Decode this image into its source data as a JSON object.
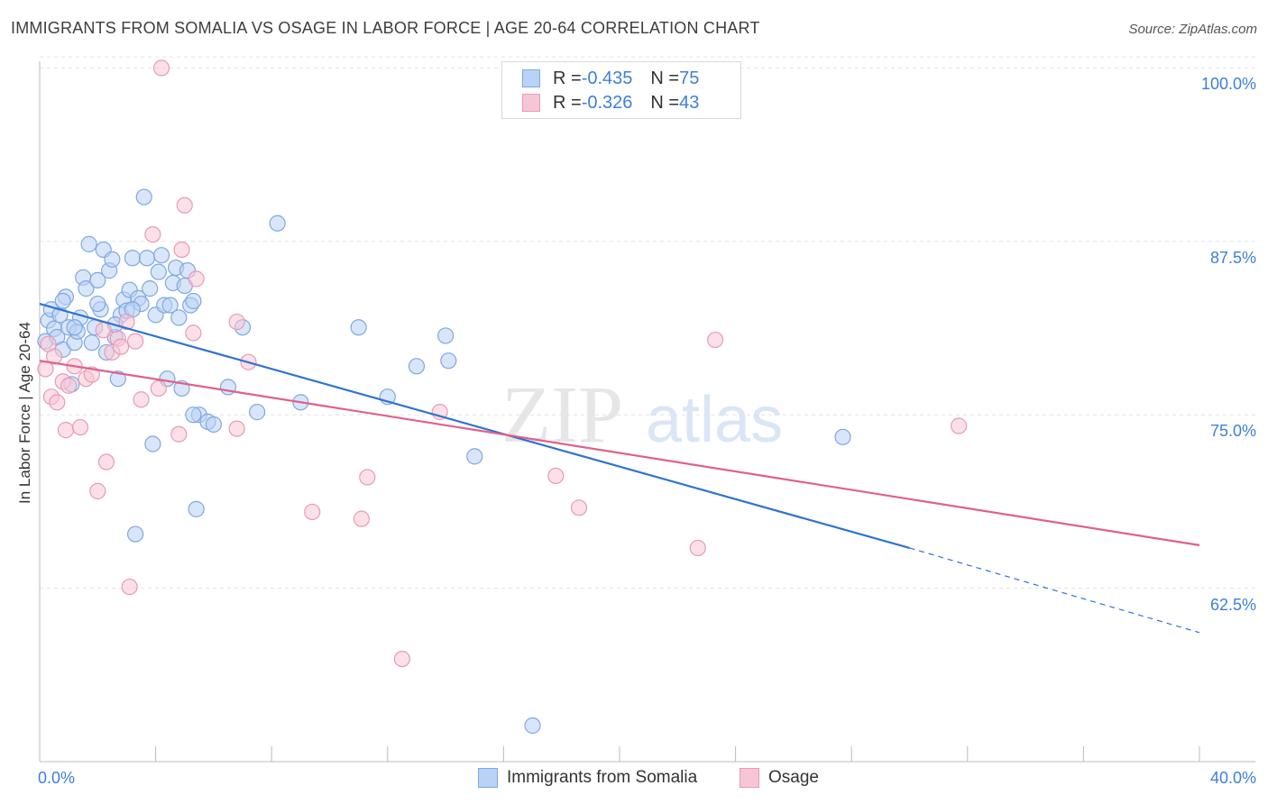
{
  "header": {
    "title": "IMMIGRANTS FROM SOMALIA VS OSAGE IN LABOR FORCE | AGE 20-64 CORRELATION CHART",
    "source": "Source: ZipAtlas.com"
  },
  "legend": {
    "r_label": "R = ",
    "n_label": "N = ",
    "rows": [
      {
        "r": "-0.435",
        "n": "75",
        "color": "#b9d2f6"
      },
      {
        "r": "-0.326",
        "n": "43",
        "color": "#f7c6d6"
      }
    ]
  },
  "watermark": {
    "zip": "ZIP",
    "atlas": "atlas"
  },
  "chart_data": {
    "type": "scatter",
    "title": "IMMIGRANTS FROM SOMALIA VS OSAGE IN LABOR FORCE | AGE 20-64 CORRELATION CHART",
    "xlabel": "",
    "ylabel": "In Labor Force | Age 20-64",
    "xlim": [
      0,
      40
    ],
    "ylim": [
      50,
      101
    ],
    "x_tick_labels": [
      "0.0%",
      "40.0%"
    ],
    "y_ticks": [
      62.5,
      75.0,
      87.5,
      100.0
    ],
    "y_tick_labels": [
      "62.5%",
      "75.0%",
      "87.5%",
      "100.0%"
    ],
    "grid": true,
    "legend_position": "top-center",
    "series": [
      {
        "name": "Immigrants from Somalia",
        "color": "#7fa7e0",
        "fill": "#b9d2f6",
        "line_color": "#2e73d0",
        "trend": {
          "x0": 0,
          "y0": 83.0,
          "x1": 30.0,
          "y1": 65.4,
          "dash_to_x": 40,
          "dash_to_y": 59.3
        },
        "points": [
          [
            0.2,
            80.3
          ],
          [
            0.3,
            81.8
          ],
          [
            0.4,
            82.6
          ],
          [
            0.5,
            81.2
          ],
          [
            0.6,
            80.6
          ],
          [
            0.7,
            82.2
          ],
          [
            0.8,
            79.7
          ],
          [
            0.9,
            83.5
          ],
          [
            1.0,
            81.3
          ],
          [
            1.1,
            77.2
          ],
          [
            1.2,
            80.2
          ],
          [
            1.3,
            81.0
          ],
          [
            1.4,
            82.0
          ],
          [
            1.5,
            84.9
          ],
          [
            1.6,
            84.1
          ],
          [
            1.7,
            87.3
          ],
          [
            1.8,
            80.2
          ],
          [
            1.9,
            81.3
          ],
          [
            2.0,
            84.7
          ],
          [
            2.1,
            82.6
          ],
          [
            2.2,
            86.9
          ],
          [
            2.3,
            79.5
          ],
          [
            2.4,
            85.4
          ],
          [
            2.5,
            86.2
          ],
          [
            2.6,
            80.6
          ],
          [
            2.7,
            77.6
          ],
          [
            2.8,
            82.2
          ],
          [
            2.9,
            83.3
          ],
          [
            3.0,
            82.5
          ],
          [
            3.1,
            84.0
          ],
          [
            3.2,
            86.3
          ],
          [
            3.3,
            66.4
          ],
          [
            3.4,
            83.4
          ],
          [
            3.5,
            83.0
          ],
          [
            3.6,
            90.7
          ],
          [
            3.7,
            86.3
          ],
          [
            3.8,
            84.1
          ],
          [
            3.9,
            72.9
          ],
          [
            4.0,
            82.2
          ],
          [
            4.1,
            85.3
          ],
          [
            4.2,
            86.5
          ],
          [
            4.3,
            82.9
          ],
          [
            4.4,
            77.6
          ],
          [
            4.5,
            82.9
          ],
          [
            4.6,
            84.5
          ],
          [
            4.7,
            85.6
          ],
          [
            4.8,
            82.0
          ],
          [
            4.9,
            76.9
          ],
          [
            5.0,
            84.3
          ],
          [
            5.1,
            85.4
          ],
          [
            5.2,
            82.9
          ],
          [
            5.4,
            68.2
          ],
          [
            5.5,
            75.0
          ],
          [
            5.8,
            74.5
          ],
          [
            5.3,
            83.2
          ],
          [
            5.3,
            75.0
          ],
          [
            6.0,
            74.3
          ],
          [
            6.5,
            77.0
          ],
          [
            7.0,
            81.3
          ],
          [
            7.5,
            75.2
          ],
          [
            8.2,
            88.8
          ],
          [
            9.0,
            75.9
          ],
          [
            11.0,
            81.3
          ],
          [
            12.0,
            76.3
          ],
          [
            13.0,
            78.5
          ],
          [
            14.0,
            80.7
          ],
          [
            14.1,
            78.9
          ],
          [
            15.0,
            72.0
          ],
          [
            17.0,
            52.6
          ],
          [
            27.7,
            73.4
          ],
          [
            1.2,
            81.3
          ],
          [
            0.8,
            83.2
          ],
          [
            2.0,
            83.0
          ],
          [
            3.2,
            82.6
          ],
          [
            2.6,
            81.5
          ]
        ]
      },
      {
        "name": "Osage",
        "color": "#e99ab4",
        "fill": "#f7c6d6",
        "line_color": "#e0608a",
        "trend": {
          "x0": 0,
          "y0": 78.9,
          "x1": 40,
          "y1": 65.6
        },
        "points": [
          [
            0.2,
            78.3
          ],
          [
            0.3,
            80.1
          ],
          [
            0.4,
            76.3
          ],
          [
            0.5,
            79.2
          ],
          [
            0.6,
            75.9
          ],
          [
            0.8,
            77.4
          ],
          [
            0.9,
            73.9
          ],
          [
            1.0,
            77.1
          ],
          [
            1.2,
            78.5
          ],
          [
            1.4,
            74.1
          ],
          [
            1.6,
            77.6
          ],
          [
            1.8,
            77.9
          ],
          [
            2.0,
            69.5
          ],
          [
            2.2,
            81.1
          ],
          [
            2.3,
            71.6
          ],
          [
            2.5,
            79.5
          ],
          [
            2.7,
            80.5
          ],
          [
            2.8,
            79.9
          ],
          [
            3.0,
            81.7
          ],
          [
            3.1,
            62.6
          ],
          [
            3.3,
            80.3
          ],
          [
            3.5,
            76.1
          ],
          [
            3.9,
            88.0
          ],
          [
            4.1,
            76.9
          ],
          [
            4.2,
            100.0
          ],
          [
            4.8,
            73.6
          ],
          [
            4.9,
            86.9
          ],
          [
            5.0,
            90.1
          ],
          [
            5.4,
            84.8
          ],
          [
            5.3,
            80.9
          ],
          [
            6.8,
            74.0
          ],
          [
            6.8,
            81.7
          ],
          [
            7.2,
            78.8
          ],
          [
            9.4,
            68.0
          ],
          [
            11.1,
            67.5
          ],
          [
            11.3,
            70.5
          ],
          [
            12.5,
            57.4
          ],
          [
            13.8,
            75.2
          ],
          [
            17.8,
            70.6
          ],
          [
            18.6,
            68.3
          ],
          [
            22.7,
            65.4
          ],
          [
            23.3,
            80.4
          ],
          [
            31.7,
            74.2
          ]
        ]
      }
    ]
  },
  "bottom_legend": {
    "items": [
      {
        "label": "Immigrants from Somalia"
      },
      {
        "label": "Osage"
      }
    ]
  }
}
